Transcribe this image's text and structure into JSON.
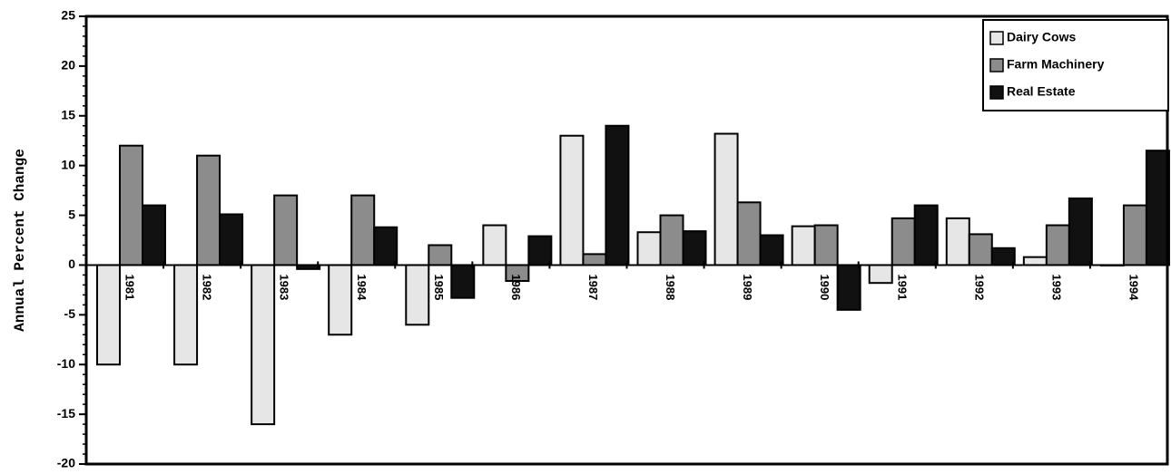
{
  "chart_data": {
    "type": "bar",
    "y_label": "Annual Percent Change",
    "categories": [
      "1981",
      "1982",
      "1983",
      "1984",
      "1985",
      "1986",
      "1987",
      "1988",
      "1989",
      "1990",
      "1991",
      "1992",
      "1993",
      "1994"
    ],
    "series": [
      {
        "name": "Dairy Cows",
        "color": "#e6e6e6",
        "values": [
          -10,
          -10,
          -16,
          -7,
          -6,
          4,
          13,
          3.3,
          13.2,
          3.9,
          -1.8,
          4.7,
          0.8,
          0
        ]
      },
      {
        "name": "Farm Machinery",
        "color": "#8c8c8c",
        "values": [
          12,
          11,
          7,
          7,
          2,
          -1.6,
          1.1,
          5,
          6.3,
          4,
          4.7,
          3.1,
          4,
          6
        ]
      },
      {
        "name": "Real Estate",
        "color": "#111111",
        "values": [
          6,
          5.1,
          -0.4,
          3.8,
          -3.3,
          2.9,
          14,
          3.4,
          3,
          -4.5,
          6,
          1.7,
          6.7,
          11.5
        ]
      }
    ],
    "ylim": [
      -20,
      25
    ],
    "yticks": [
      -20,
      -15,
      -10,
      -5,
      0,
      5,
      10,
      15,
      20,
      25
    ],
    "legend": "top-right"
  }
}
